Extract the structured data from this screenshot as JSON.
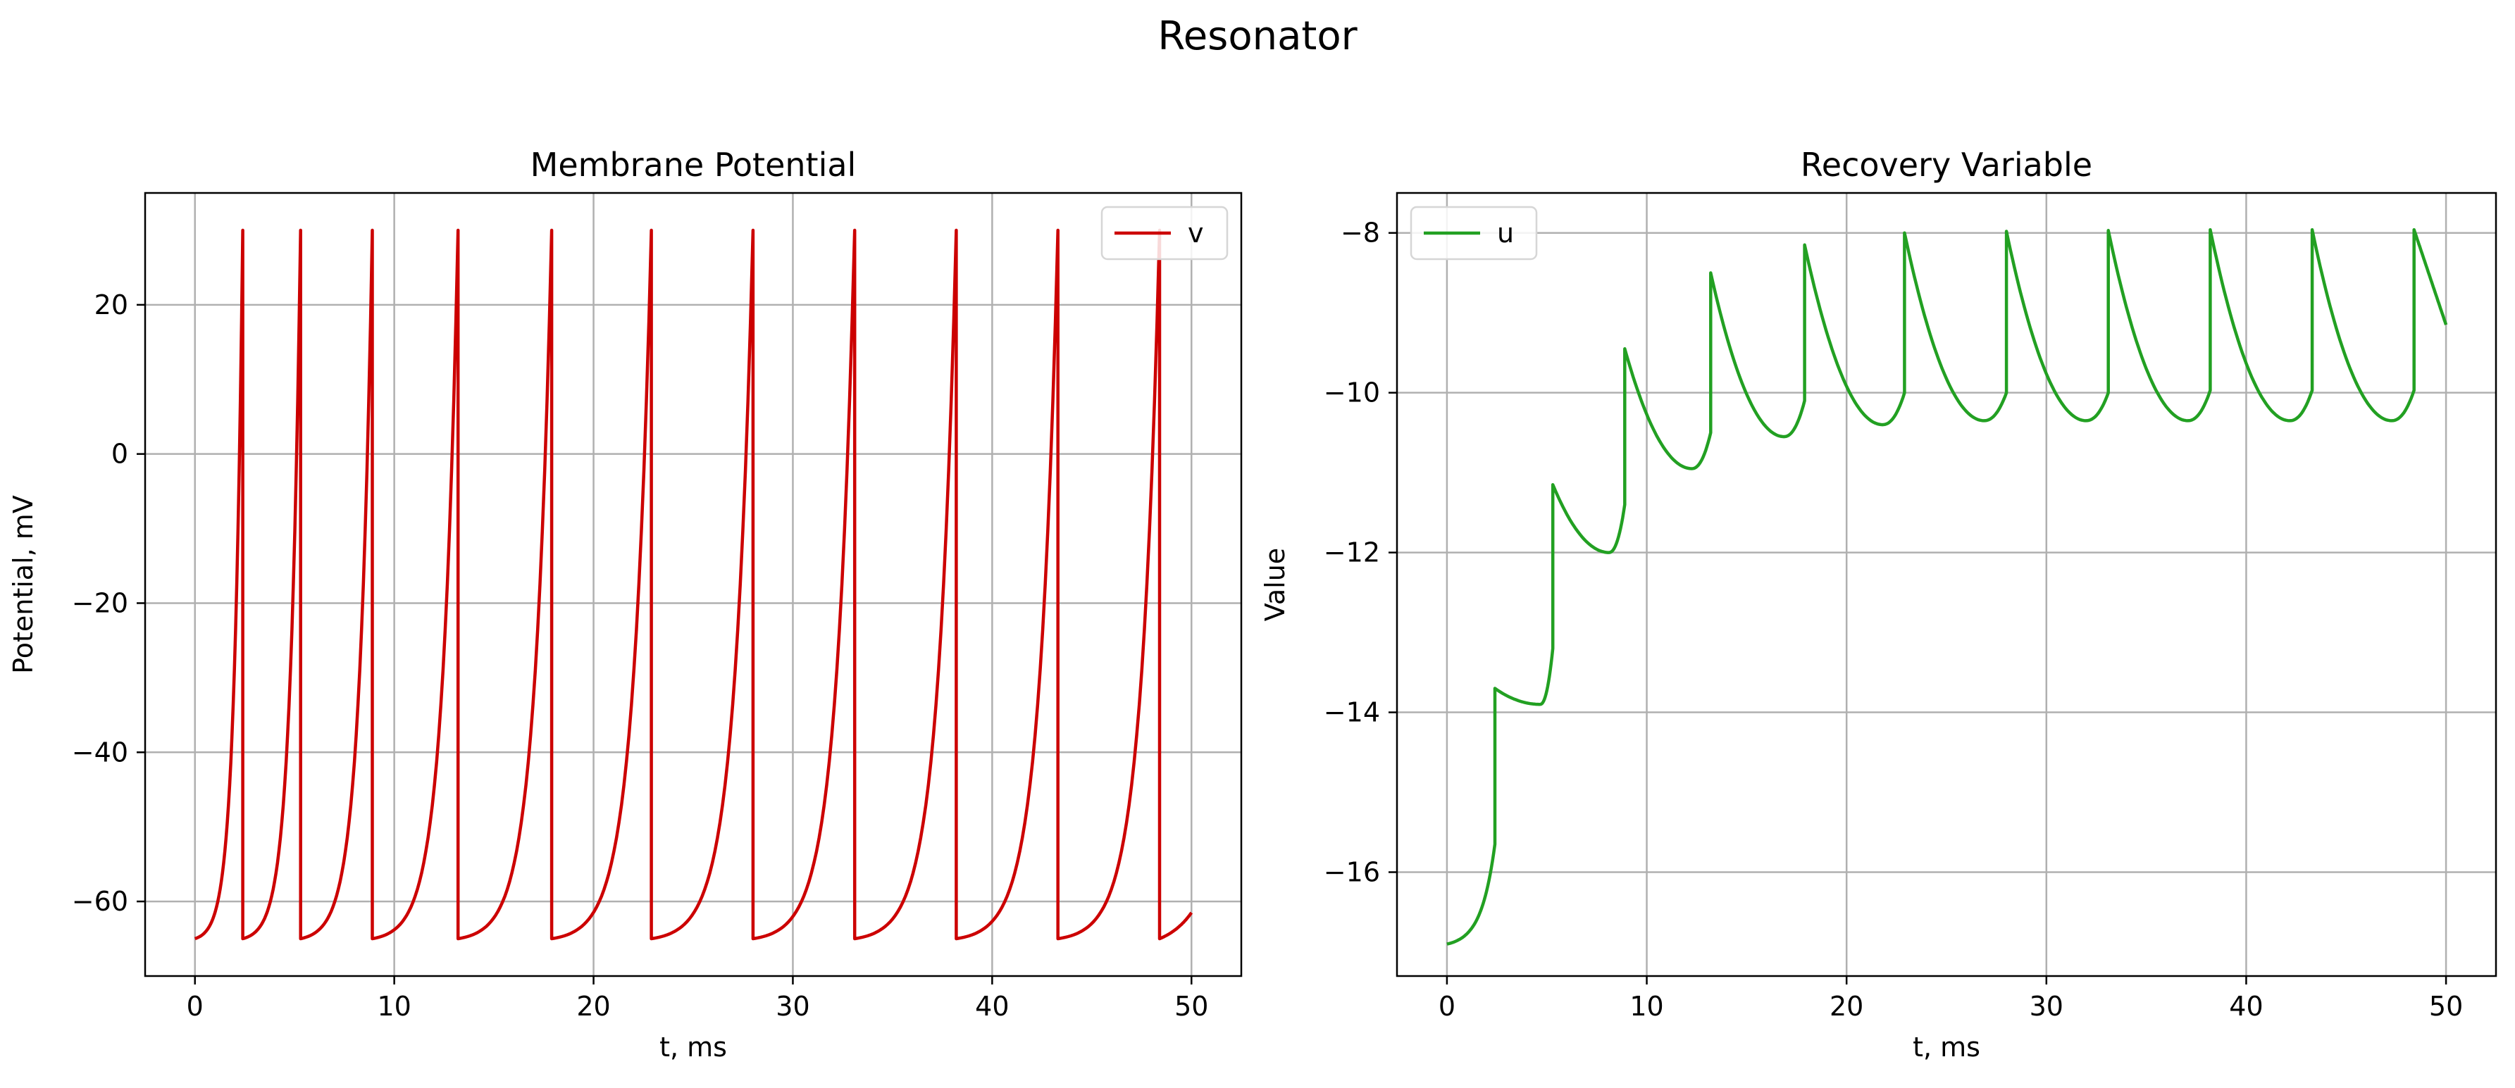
{
  "figure": {
    "suptitle": "Resonator"
  },
  "chart_data": [
    {
      "type": "line",
      "title": "Membrane Potential",
      "xlabel": "t, ms",
      "ylabel": "Potential, mV",
      "xlim": [
        -2.5,
        52.5
      ],
      "ylim": [
        -70,
        35
      ],
      "xticks": [
        0,
        10,
        20,
        30,
        40,
        50
      ],
      "yticks": [
        -60,
        -40,
        -20,
        0,
        20
      ],
      "xtick_labels": [
        "0",
        "10",
        "20",
        "30",
        "40",
        "50"
      ],
      "ytick_labels": [
        "−60",
        "−40",
        "−20",
        "0",
        "20"
      ],
      "grid": true,
      "legend": "top-right",
      "series": [
        {
          "name": "v",
          "color": "#cc0000",
          "spike_times": [
            2.4,
            5.3,
            8.9,
            13.2,
            17.9,
            22.9,
            28.0,
            33.1,
            38.2,
            43.3,
            48.4
          ],
          "spike_peak": 30,
          "reset": -65,
          "start": -65,
          "end": [
            50,
            -61.5
          ],
          "curvature": 5.5
        }
      ]
    },
    {
      "type": "line",
      "title": "Recovery Variable",
      "xlabel": "t, ms",
      "ylabel": "Value",
      "xlim": [
        -2.5,
        52.5
      ],
      "ylim": [
        -17.3,
        -7.5
      ],
      "xticks": [
        0,
        10,
        20,
        30,
        40,
        50
      ],
      "yticks": [
        -16,
        -14,
        -12,
        -10,
        -8
      ],
      "xtick_labels": [
        "0",
        "10",
        "20",
        "30",
        "40",
        "50"
      ],
      "ytick_labels": [
        "−16",
        "−14",
        "−12",
        "−10",
        "−8"
      ],
      "grid": true,
      "legend": "top-left",
      "series": [
        {
          "name": "u",
          "color": "#22a022",
          "start": -16.9,
          "end": [
            50,
            -9.15
          ],
          "segments": [
            {
              "t": 2.4,
              "pre": -15.65,
              "post": -13.7,
              "min": -13.9
            },
            {
              "t": 5.3,
              "pre": -13.2,
              "post": -11.15,
              "min": -12.0
            },
            {
              "t": 8.9,
              "pre": -11.4,
              "post": -9.45,
              "min": -10.95
            },
            {
              "t": 13.2,
              "pre": -10.5,
              "post": -8.5,
              "min": -10.55
            },
            {
              "t": 17.9,
              "pre": -10.1,
              "post": -8.15,
              "min": -10.4
            },
            {
              "t": 22.9,
              "pre": -10.0,
              "post": -8.0,
              "min": -10.35
            },
            {
              "t": 28.0,
              "pre": -10.0,
              "post": -7.98,
              "min": -10.35
            },
            {
              "t": 33.1,
              "pre": -10.0,
              "post": -7.97,
              "min": -10.35
            },
            {
              "t": 38.2,
              "pre": -9.97,
              "post": -7.96,
              "min": -10.35
            },
            {
              "t": 43.3,
              "pre": -9.97,
              "post": -7.96,
              "min": -10.35
            },
            {
              "t": 48.4,
              "pre": -9.97,
              "post": -7.96,
              "min": null
            }
          ]
        }
      ]
    }
  ]
}
